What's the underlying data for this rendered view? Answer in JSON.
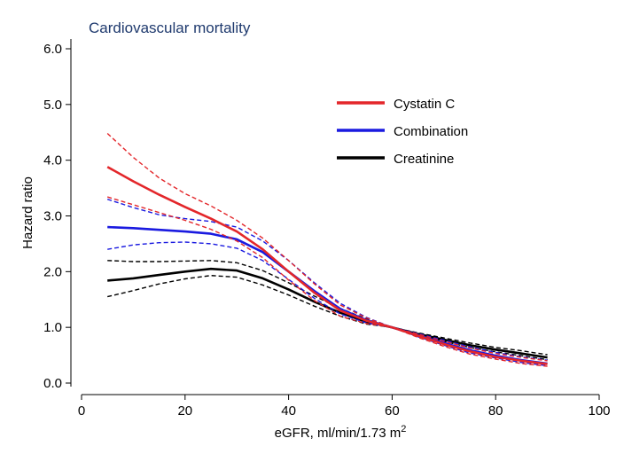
{
  "chart_data": {
    "type": "line",
    "title": "Cardiovascular mortality",
    "xlabel": "eGFR, ml/min/1.73 m",
    "xlabel_superscript": "2",
    "ylabel": "Hazard ratio",
    "xlim": [
      0,
      100
    ],
    "ylim": [
      0,
      6
    ],
    "xticks": [
      0,
      20,
      40,
      60,
      80,
      100
    ],
    "yticks": [
      0,
      1,
      2,
      3,
      4,
      5,
      6
    ],
    "ytick_labels": [
      "0.0",
      "1.0",
      "2.0",
      "3.0",
      "4.0",
      "5.0",
      "6.0"
    ],
    "legend_position": "top-right",
    "x": [
      5,
      10,
      15,
      20,
      25,
      30,
      35,
      40,
      45,
      50,
      55,
      60,
      65,
      70,
      75,
      80,
      85,
      90
    ],
    "series": [
      {
        "name": "Cystatin C",
        "color": "#e3262a",
        "values": [
          3.88,
          3.62,
          3.38,
          3.16,
          2.95,
          2.72,
          2.4,
          2.0,
          1.62,
          1.3,
          1.12,
          1.0,
          0.85,
          0.7,
          0.57,
          0.47,
          0.4,
          0.34
        ],
        "upper": [
          4.48,
          4.05,
          3.68,
          3.4,
          3.18,
          2.92,
          2.6,
          2.2,
          1.78,
          1.4,
          1.17,
          1.0,
          0.88,
          0.75,
          0.63,
          0.53,
          0.46,
          0.4
        ],
        "lower": [
          3.34,
          3.2,
          3.06,
          2.92,
          2.76,
          2.55,
          2.25,
          1.85,
          1.48,
          1.2,
          1.07,
          1.0,
          0.82,
          0.66,
          0.52,
          0.43,
          0.35,
          0.3
        ]
      },
      {
        "name": "Combination",
        "color": "#1a1ae0",
        "values": [
          2.8,
          2.78,
          2.75,
          2.72,
          2.68,
          2.58,
          2.35,
          2.0,
          1.65,
          1.33,
          1.13,
          1.0,
          0.86,
          0.72,
          0.59,
          0.49,
          0.41,
          0.35
        ],
        "upper": [
          3.3,
          3.15,
          3.02,
          2.95,
          2.9,
          2.8,
          2.55,
          2.2,
          1.8,
          1.43,
          1.18,
          1.0,
          0.89,
          0.77,
          0.65,
          0.55,
          0.47,
          0.41
        ],
        "lower": [
          2.4,
          2.48,
          2.52,
          2.53,
          2.5,
          2.42,
          2.2,
          1.86,
          1.52,
          1.24,
          1.08,
          1.0,
          0.83,
          0.68,
          0.54,
          0.45,
          0.37,
          0.31
        ]
      },
      {
        "name": "Creatinine",
        "color": "#000000",
        "values": [
          1.84,
          1.88,
          1.94,
          2.0,
          2.05,
          2.02,
          1.88,
          1.68,
          1.46,
          1.26,
          1.1,
          1.0,
          0.88,
          0.78,
          0.68,
          0.6,
          0.53,
          0.46
        ],
        "upper": [
          2.2,
          2.18,
          2.18,
          2.19,
          2.2,
          2.16,
          2.02,
          1.8,
          1.56,
          1.34,
          1.15,
          1.0,
          0.9,
          0.81,
          0.72,
          0.64,
          0.58,
          0.51
        ],
        "lower": [
          1.55,
          1.66,
          1.78,
          1.87,
          1.93,
          1.9,
          1.76,
          1.58,
          1.38,
          1.2,
          1.06,
          1.0,
          0.86,
          0.75,
          0.64,
          0.56,
          0.49,
          0.42
        ]
      }
    ]
  }
}
